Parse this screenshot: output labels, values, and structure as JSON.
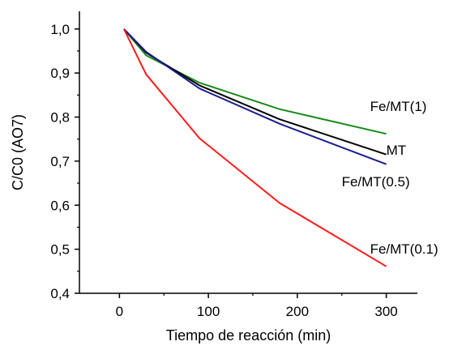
{
  "chart_data": {
    "type": "line",
    "xlabel": "Tiempo de reacción (min)",
    "ylabel": "C/C0 (AO7)",
    "xlim": [
      -45,
      335
    ],
    "ylim": [
      0.4,
      1.04
    ],
    "x_ticks": [
      0,
      100,
      200,
      300
    ],
    "x_tick_labels": [
      "0",
      "100",
      "200",
      "300"
    ],
    "y_ticks": [
      0.4,
      0.5,
      0.6,
      0.7,
      0.8,
      0.9,
      1.0
    ],
    "y_tick_labels": [
      "0,4",
      "0,5",
      "0,6",
      "0,7",
      "0,8",
      "0,9",
      "1,0"
    ],
    "grid": false,
    "legend": "none",
    "series": [
      {
        "name": "Fe/MT(1)",
        "color": "#1a8a1a",
        "x": [
          5,
          30,
          90,
          180,
          300
        ],
        "y": [
          1.0,
          0.94,
          0.878,
          0.818,
          0.762
        ]
      },
      {
        "name": "MT",
        "color": "#000000",
        "x": [
          5,
          30,
          90,
          180,
          300
        ],
        "y": [
          1.0,
          0.946,
          0.872,
          0.795,
          0.715
        ]
      },
      {
        "name": "Fe/MT(0.5)",
        "color": "#1c1c8c",
        "x": [
          5,
          30,
          90,
          180,
          300
        ],
        "y": [
          1.0,
          0.948,
          0.865,
          0.785,
          0.693
        ]
      },
      {
        "name": "Fe/MT(0.1)",
        "color": "#ff1a1a",
        "x": [
          5,
          30,
          90,
          180,
          300
        ],
        "y": [
          1.0,
          0.897,
          0.752,
          0.605,
          0.461
        ]
      }
    ]
  }
}
